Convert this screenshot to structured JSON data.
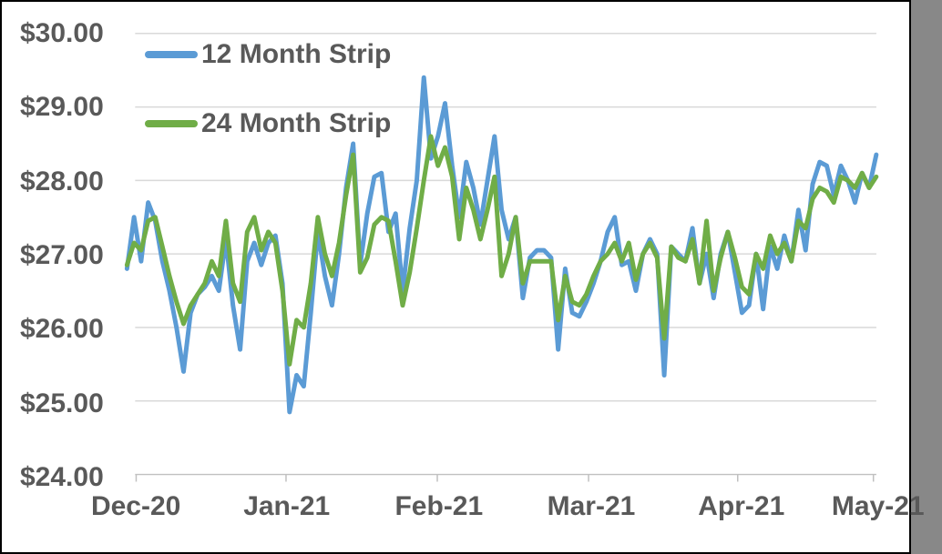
{
  "chart_data": {
    "type": "line",
    "title": "",
    "grid": "horizontal",
    "legend_position": "top-left-inside",
    "x_axis": {
      "tick_labels": [
        "Dec-20",
        "Jan-21",
        "Feb-21",
        "Mar-21",
        "Apr-21",
        "May-21"
      ],
      "tick_indices": [
        1.3,
        22.5,
        43.9,
        65.3,
        86.4,
        105.6
      ]
    },
    "y_axis": {
      "tick_labels": [
        "$24.00",
        "$25.00",
        "$26.00",
        "$27.00",
        "$28.00",
        "$29.00",
        "$30.00"
      ],
      "tick_values": [
        24,
        25,
        26,
        27,
        28,
        29,
        30
      ],
      "min": 24,
      "max": 30,
      "format": "USD"
    },
    "series": [
      {
        "name": "12 Month Strip",
        "color": "#5B9BD5",
        "values": [
          26.8,
          27.5,
          26.9,
          27.7,
          27.45,
          26.9,
          26.5,
          26.0,
          25.4,
          26.2,
          26.45,
          26.55,
          26.7,
          26.5,
          27.2,
          26.3,
          25.7,
          26.9,
          27.15,
          26.85,
          27.15,
          27.25,
          26.6,
          24.85,
          25.35,
          25.2,
          26.2,
          27.3,
          26.7,
          26.3,
          27.0,
          27.9,
          28.5,
          26.85,
          27.55,
          28.05,
          28.1,
          27.3,
          27.55,
          26.5,
          27.35,
          28.0,
          29.4,
          28.3,
          28.6,
          29.05,
          28.2,
          27.5,
          28.25,
          27.9,
          27.4,
          28.0,
          28.6,
          27.6,
          27.2,
          27.5,
          26.4,
          26.95,
          27.05,
          27.05,
          26.95,
          25.7,
          26.8,
          26.2,
          26.15,
          26.35,
          26.6,
          26.9,
          27.3,
          27.5,
          26.85,
          26.9,
          26.5,
          27.0,
          27.2,
          27.0,
          25.35,
          27.1,
          27.0,
          26.9,
          27.35,
          26.6,
          27.0,
          26.4,
          27.0,
          27.3,
          26.75,
          26.2,
          26.3,
          27.0,
          26.25,
          27.1,
          26.8,
          27.25,
          26.9,
          27.6,
          27.05,
          27.95,
          28.25,
          28.2,
          27.8,
          28.2,
          28.0,
          27.7,
          28.1,
          27.9,
          28.35
        ]
      },
      {
        "name": "24 Month Strip",
        "color": "#70AD47",
        "values": [
          26.85,
          27.15,
          27.05,
          27.45,
          27.5,
          27.1,
          26.7,
          26.35,
          26.05,
          26.3,
          26.45,
          26.6,
          26.9,
          26.7,
          27.45,
          26.6,
          26.35,
          27.3,
          27.5,
          27.05,
          27.3,
          27.15,
          26.5,
          25.5,
          26.1,
          26.0,
          26.6,
          27.5,
          27.0,
          26.7,
          27.15,
          27.8,
          28.35,
          26.75,
          26.95,
          27.4,
          27.5,
          27.45,
          26.9,
          26.3,
          26.75,
          27.35,
          28.0,
          28.6,
          28.2,
          28.45,
          28.05,
          27.2,
          27.9,
          27.6,
          27.2,
          27.6,
          28.05,
          26.7,
          27.0,
          27.5,
          26.6,
          26.9,
          26.9,
          26.9,
          26.9,
          26.1,
          26.7,
          26.35,
          26.3,
          26.45,
          26.7,
          26.9,
          27.0,
          27.15,
          26.9,
          27.15,
          26.65,
          27.0,
          27.15,
          26.95,
          25.85,
          27.1,
          26.95,
          26.9,
          27.2,
          26.6,
          27.45,
          26.5,
          26.95,
          27.3,
          26.95,
          26.55,
          26.45,
          27.0,
          26.8,
          27.25,
          27.0,
          27.15,
          26.9,
          27.45,
          27.35,
          27.75,
          27.9,
          27.85,
          27.7,
          28.05,
          28.0,
          27.9,
          28.1,
          27.9,
          28.05
        ]
      }
    ]
  },
  "colors": {
    "background": "#FFFFFF",
    "border": "#000000",
    "gridline": "#D9D9D9",
    "axis_line": "#C0C0C0",
    "axis_text": "#595959",
    "series_blue": "#5B9BD5",
    "series_green": "#70AD47"
  }
}
